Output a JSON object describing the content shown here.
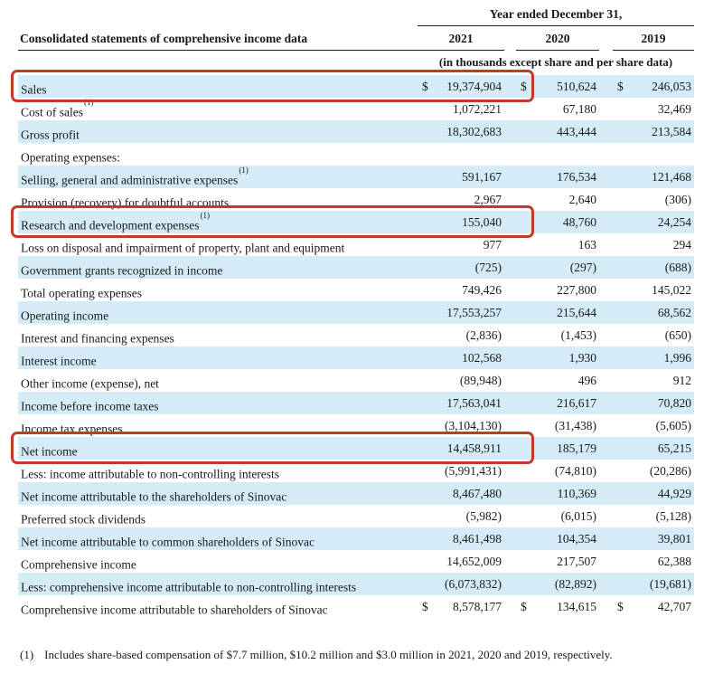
{
  "header": {
    "period_heading": "Year ended December 31,",
    "left_header": "Consolidated statements of comprehensive income data",
    "units_note": "(in thousands except share and per share data)",
    "years": [
      "2021",
      "2020",
      "2019"
    ]
  },
  "table": {
    "currency_symbol": "$",
    "columns": [
      "2021",
      "2020",
      "2019"
    ],
    "rows": [
      {
        "label": "Sales",
        "sup": "",
        "dollar": true,
        "values": [
          "19,374,904",
          "510,624",
          "246,053"
        ],
        "shaded": true,
        "boxed": true
      },
      {
        "label": "Cost of sales",
        "sup": "(1)",
        "dollar": false,
        "values": [
          "1,072,221",
          "67,180",
          "32,469"
        ],
        "shaded": false,
        "boxed": false
      },
      {
        "label": "Gross profit",
        "sup": "",
        "dollar": false,
        "values": [
          "18,302,683",
          "443,444",
          "213,584"
        ],
        "shaded": true,
        "boxed": false
      },
      {
        "label": "Operating expenses:",
        "sup": "",
        "dollar": false,
        "values": [
          "",
          "",
          ""
        ],
        "shaded": false,
        "boxed": false
      },
      {
        "label": "Selling, general and administrative expenses",
        "sup": "(1)",
        "dollar": false,
        "values": [
          "591,167",
          "176,534",
          "121,468"
        ],
        "shaded": true,
        "boxed": false
      },
      {
        "label": "Provision (recovery) for doubtful accounts",
        "sup": "",
        "dollar": false,
        "values": [
          "2,967",
          "2,640",
          "(306)"
        ],
        "shaded": false,
        "boxed": false
      },
      {
        "label": "Research and development expenses",
        "sup": "(1)",
        "dollar": false,
        "values": [
          "155,040",
          "48,760",
          "24,254"
        ],
        "shaded": true,
        "boxed": true
      },
      {
        "label": "Loss on disposal and impairment of property, plant and equipment",
        "sup": "",
        "dollar": false,
        "values": [
          "977",
          "163",
          "294"
        ],
        "shaded": false,
        "boxed": false
      },
      {
        "label": "Government grants recognized in income",
        "sup": "",
        "dollar": false,
        "values": [
          "(725)",
          "(297)",
          "(688)"
        ],
        "shaded": true,
        "boxed": false
      },
      {
        "label": "Total operating expenses",
        "sup": "",
        "dollar": false,
        "values": [
          "749,426",
          "227,800",
          "145,022"
        ],
        "shaded": false,
        "boxed": false
      },
      {
        "label": "Operating income",
        "sup": "",
        "dollar": false,
        "values": [
          "17,553,257",
          "215,644",
          "68,562"
        ],
        "shaded": true,
        "boxed": false
      },
      {
        "label": "Interest and financing expenses",
        "sup": "",
        "dollar": false,
        "values": [
          "(2,836)",
          "(1,453)",
          "(650)"
        ],
        "shaded": false,
        "boxed": false
      },
      {
        "label": "Interest income",
        "sup": "",
        "dollar": false,
        "values": [
          "102,568",
          "1,930",
          "1,996"
        ],
        "shaded": true,
        "boxed": false
      },
      {
        "label": "Other income (expense), net",
        "sup": "",
        "dollar": false,
        "values": [
          "(89,948)",
          "496",
          "912"
        ],
        "shaded": false,
        "boxed": false
      },
      {
        "label": "Income before income taxes",
        "sup": "",
        "dollar": false,
        "values": [
          "17,563,041",
          "216,617",
          "70,820"
        ],
        "shaded": true,
        "boxed": false
      },
      {
        "label": "Income tax expenses",
        "sup": "",
        "dollar": false,
        "values": [
          "(3,104,130)",
          "(31,438)",
          "(5,605)"
        ],
        "shaded": false,
        "boxed": false
      },
      {
        "label": "Net income",
        "sup": "",
        "dollar": false,
        "values": [
          "14,458,911",
          "185,179",
          "65,215"
        ],
        "shaded": true,
        "boxed": true
      },
      {
        "label": "Less: income attributable to non-controlling interests",
        "sup": "",
        "dollar": false,
        "values": [
          "(5,991,431)",
          "(74,810)",
          "(20,286)"
        ],
        "shaded": false,
        "boxed": false
      },
      {
        "label": "Net income attributable to the shareholders of Sinovac",
        "sup": "",
        "dollar": false,
        "values": [
          "8,467,480",
          "110,369",
          "44,929"
        ],
        "shaded": true,
        "boxed": false
      },
      {
        "label": "Preferred stock dividends",
        "sup": "",
        "dollar": false,
        "values": [
          "(5,982)",
          "(6,015)",
          "(5,128)"
        ],
        "shaded": false,
        "boxed": false
      },
      {
        "label": "Net income attributable to common shareholders of Sinovac",
        "sup": "",
        "dollar": false,
        "values": [
          "8,461,498",
          "104,354",
          "39,801"
        ],
        "shaded": true,
        "boxed": false
      },
      {
        "label": "Comprehensive income",
        "sup": "",
        "dollar": false,
        "values": [
          "14,652,009",
          "217,507",
          "62,388"
        ],
        "shaded": false,
        "boxed": false
      },
      {
        "label": "Less: comprehensive income attributable to non-controlling interests",
        "sup": "",
        "dollar": false,
        "values": [
          "(6,073,832)",
          "(82,892)",
          "(19,681)"
        ],
        "shaded": true,
        "boxed": false
      },
      {
        "label": "Comprehensive income attributable to shareholders of Sinovac",
        "sup": "",
        "dollar": true,
        "values": [
          "8,578,177",
          "134,615",
          "42,707"
        ],
        "shaded": false,
        "boxed": false
      }
    ]
  },
  "footnote": {
    "marker": "(1)",
    "text": "Includes share-based compensation of $7.7 million, $10.2 million and $3.0 million in 2021, 2020 and 2019, respectively."
  },
  "colors": {
    "row_shade": "#d3ecf8",
    "highlight_box": "#c4392b",
    "rule_line": "#1a1a1a"
  }
}
